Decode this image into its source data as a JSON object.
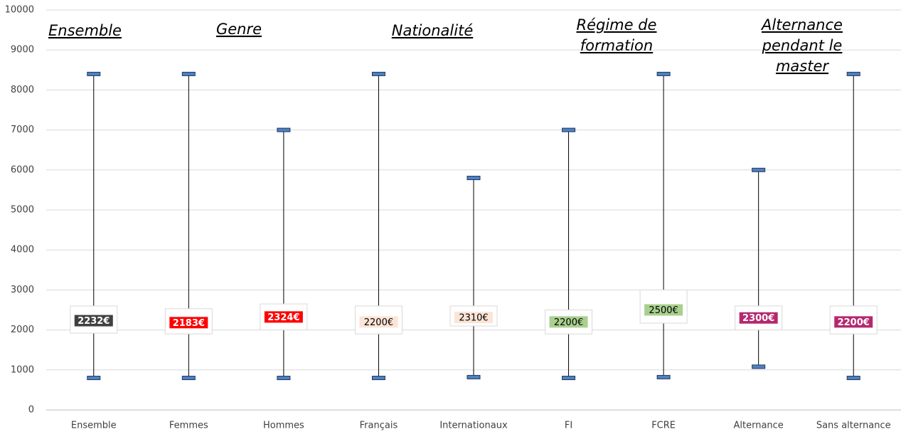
{
  "chart_data": {
    "type": "box",
    "categories": [
      "Ensemble",
      "Femmes",
      "Hommes",
      "Français",
      "Internationaux",
      "FI",
      "FCRE",
      "Alternance",
      "Sans alternance"
    ],
    "min": [
      800,
      800,
      800,
      800,
      820,
      800,
      820,
      1080,
      800
    ],
    "q1": [
      1920,
      1900,
      2000,
      1900,
      2100,
      1900,
      2170,
      2000,
      1900
    ],
    "median": [
      2232,
      2183,
      2324,
      2200,
      2310,
      2200,
      2500,
      2300,
      2200
    ],
    "q3": [
      2600,
      2530,
      2650,
      2600,
      2600,
      2500,
      3000,
      2600,
      2600
    ],
    "max": [
      8400,
      8400,
      7000,
      8400,
      5800,
      7000,
      8400,
      6000,
      8400
    ],
    "value_labels": [
      "2232€",
      "2183€",
      "2324€",
      "2200€",
      "2310€",
      "2200€",
      "2500€",
      "2300€",
      "2200€"
    ],
    "label_colors": [
      "#404040",
      "#ff0000",
      "#ff0000",
      "#fce4d6",
      "#fce4d6",
      "#a9d08e",
      "#a9d08e",
      "#b5286f",
      "#b5286f"
    ],
    "cap_color": "#4f81bd",
    "box_color": "#ffffff",
    "ylim": [
      0,
      10000
    ],
    "yticks": [
      0,
      1000,
      2000,
      3000,
      4000,
      5000,
      6000,
      7000,
      8000,
      9000,
      10000
    ],
    "grid": true,
    "annotations": [
      {
        "lines": [
          "Ensemble"
        ]
      },
      {
        "lines": [
          "Genre"
        ]
      },
      {
        "lines": [
          "Nationalité"
        ]
      },
      {
        "lines": [
          "Régime de",
          "formation"
        ]
      },
      {
        "lines": [
          "Alternance",
          "pendant le",
          "master"
        ]
      }
    ]
  }
}
